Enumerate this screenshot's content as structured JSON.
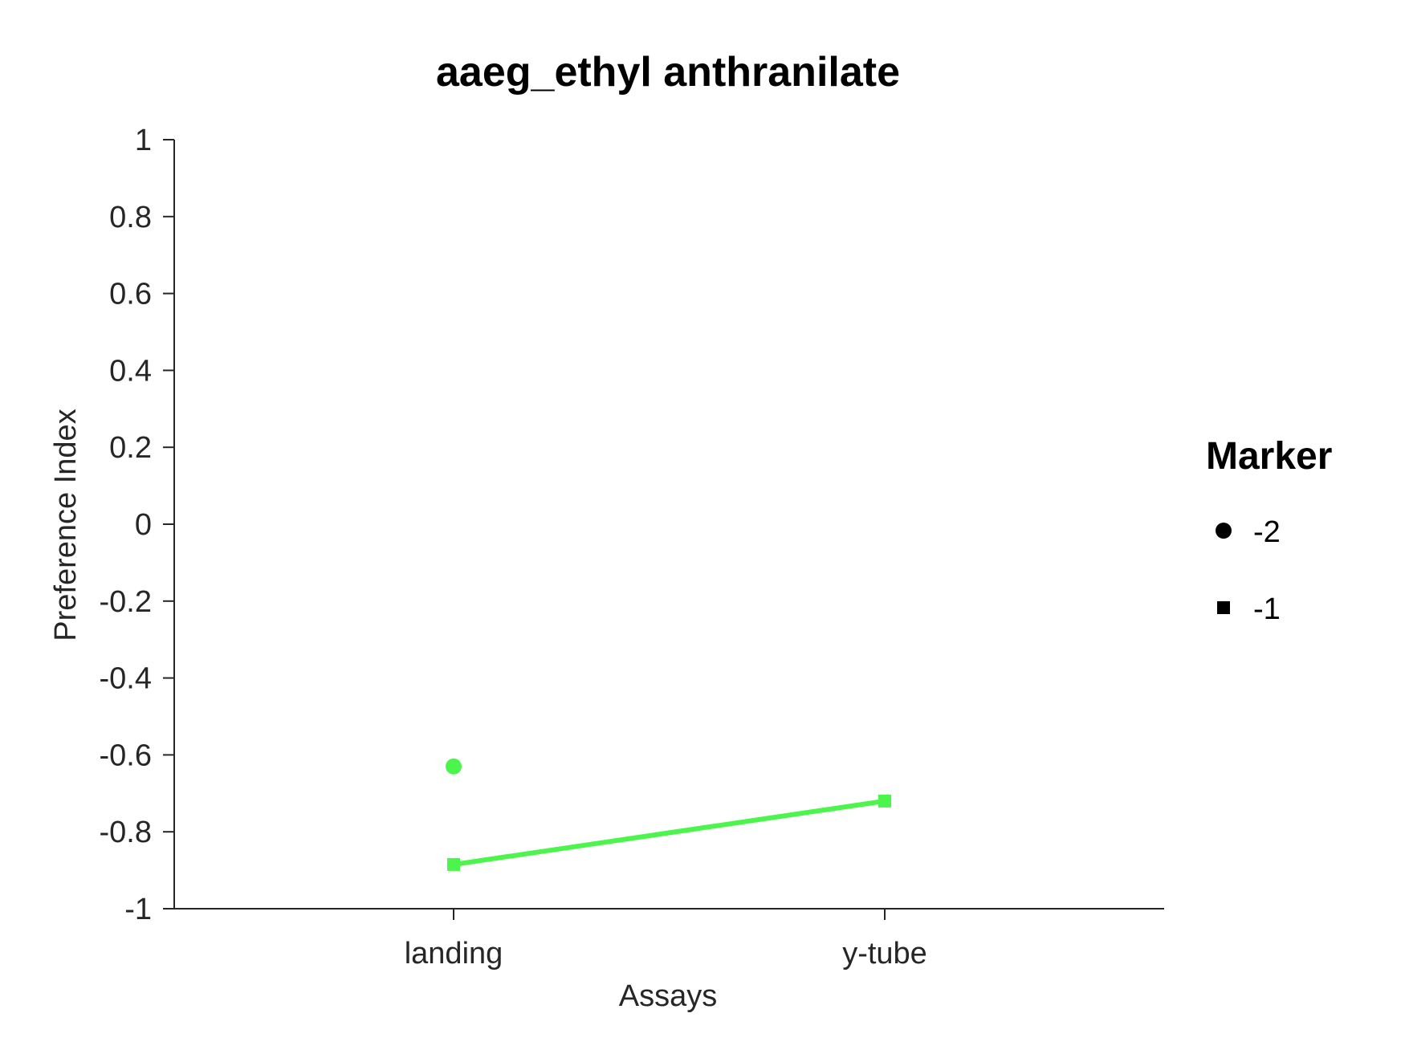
{
  "chart_data": {
    "type": "line",
    "title": "aaeg_ethyl anthranilate",
    "xlabel": "Assays",
    "ylabel": "Preference Index",
    "categories": [
      "landing",
      "y-tube"
    ],
    "ylim": [
      -1,
      1
    ],
    "yticks": [
      1,
      0.8,
      0.6,
      0.4,
      0.2,
      0,
      -0.2,
      -0.4,
      -0.6,
      -0.8,
      -1
    ],
    "ytick_labels": [
      "1",
      "0.8",
      "0.6",
      "0.4",
      "0.2",
      "0",
      "-0.2",
      "-0.4",
      "-0.6",
      "-0.8",
      "-1"
    ],
    "grid": false,
    "color": "#4cf54c",
    "series": [
      {
        "marker": "circle",
        "values": [
          -0.63,
          null
        ],
        "connected": false
      },
      {
        "marker": "square",
        "values": [
          -0.885,
          -0.72
        ],
        "connected": true
      }
    ],
    "legend": {
      "title": "Marker",
      "placement": "right",
      "entries": [
        {
          "marker": "circle",
          "label": "-2"
        },
        {
          "marker": "square",
          "label": "-1"
        }
      ]
    }
  }
}
